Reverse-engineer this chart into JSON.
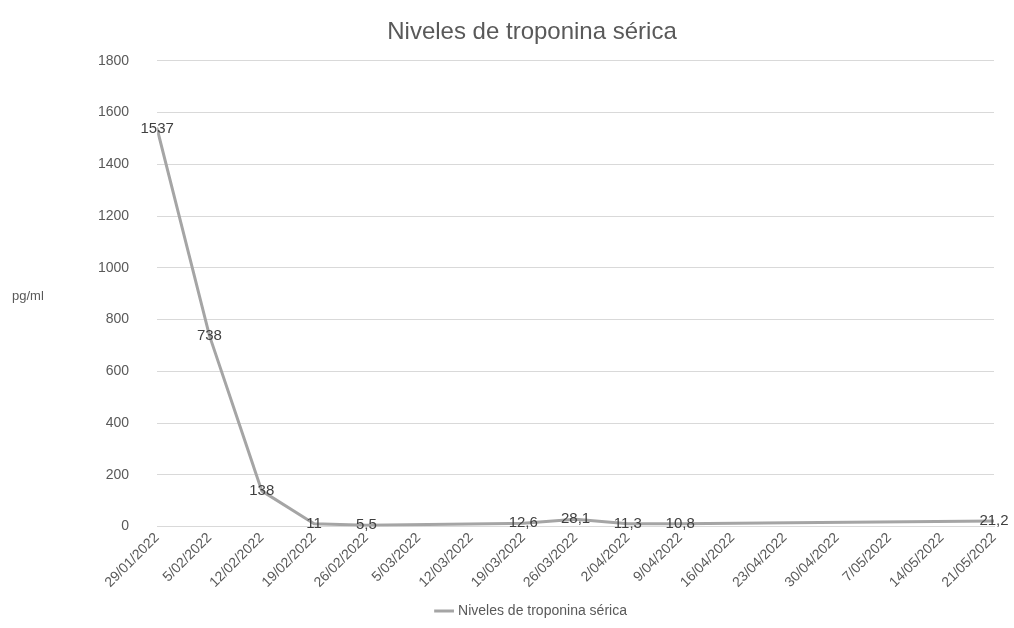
{
  "chart_data": {
    "type": "line",
    "title": "Niveles de troponina sérica",
    "ylabel": "pg/ml",
    "x": [
      "2022-01-29",
      "2022-02-05",
      "2022-02-12",
      "2022-02-19",
      "2022-02-26",
      "2022-03-19",
      "2022-03-26",
      "2022-04-02",
      "2022-04-09",
      "2022-05-21"
    ],
    "series": [
      {
        "name": "Niveles de troponina sérica",
        "color": "#a5a5a5",
        "values": [
          1537,
          738,
          138,
          11,
          5.5,
          12.6,
          28.1,
          11.3,
          10.8,
          21.2
        ],
        "value_labels": [
          "1537",
          "738",
          "138",
          "11",
          "5,5",
          "12,6",
          "28,1",
          "11,3",
          "10,8",
          "21,2"
        ]
      }
    ],
    "xlim": [
      "2022-01-29",
      "2022-05-21"
    ],
    "xticks": [
      {
        "value": "2022-01-29",
        "label": "29/01/2022"
      },
      {
        "value": "2022-02-05",
        "label": "5/02/2022"
      },
      {
        "value": "2022-02-12",
        "label": "12/02/2022"
      },
      {
        "value": "2022-02-19",
        "label": "19/02/2022"
      },
      {
        "value": "2022-02-26",
        "label": "26/02/2022"
      },
      {
        "value": "2022-03-05",
        "label": "5/03/2022"
      },
      {
        "value": "2022-03-12",
        "label": "12/03/2022"
      },
      {
        "value": "2022-03-19",
        "label": "19/03/2022"
      },
      {
        "value": "2022-03-26",
        "label": "26/03/2022"
      },
      {
        "value": "2022-04-02",
        "label": "2/04/2022"
      },
      {
        "value": "2022-04-09",
        "label": "9/04/2022"
      },
      {
        "value": "2022-04-16",
        "label": "16/04/2022"
      },
      {
        "value": "2022-04-23",
        "label": "23/04/2022"
      },
      {
        "value": "2022-04-30",
        "label": "30/04/2022"
      },
      {
        "value": "2022-05-07",
        "label": "7/05/2022"
      },
      {
        "value": "2022-05-14",
        "label": "14/05/2022"
      },
      {
        "value": "2022-05-21",
        "label": "21/05/2022"
      }
    ],
    "ylim": [
      0,
      1800
    ],
    "yticks": [
      0,
      200,
      400,
      600,
      800,
      1000,
      1200,
      1400,
      1600,
      1800
    ],
    "grid": "y",
    "legend": "bottom",
    "marker": "none",
    "line_style": "solid"
  }
}
